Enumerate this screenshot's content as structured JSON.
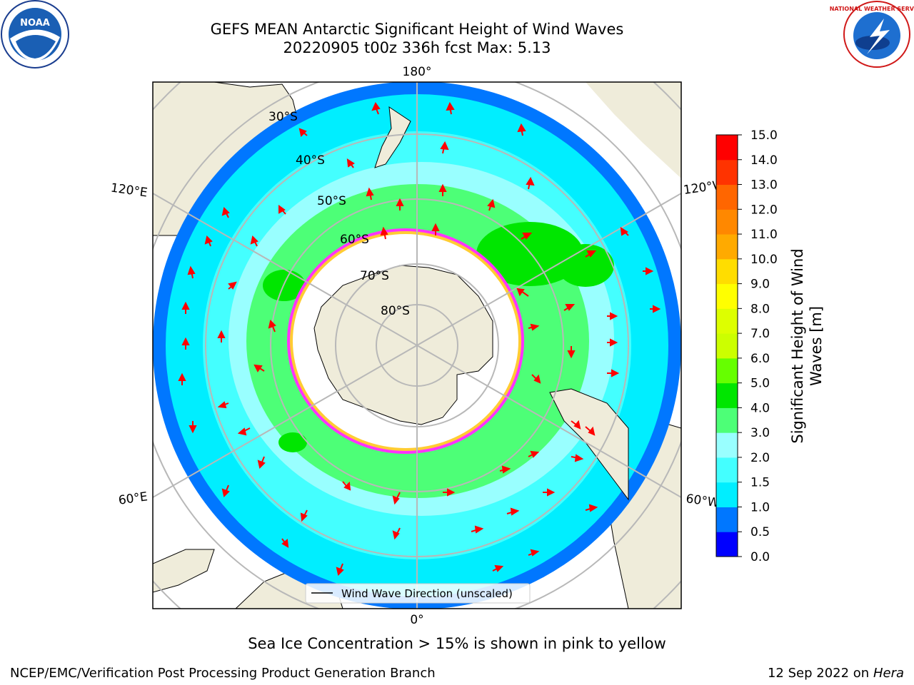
{
  "title_line1": "GEFS MEAN Antarctic Significant Height of Wind Waves",
  "title_line2": "20220905 t00z 336h fcst   Max: 5.13",
  "subtitle": "Sea Ice Concentration > 15% is shown in pink to yellow",
  "footer_left": "NCEP/EMC/Verification Post Processing Product Generation Branch",
  "footer_date": "12 Sep 2022 on",
  "footer_host": "Hera",
  "logos": {
    "left": "noaa-logo",
    "right": "national-weather-service-logo"
  },
  "noaa_logo_text": "NOAA",
  "nws_logo_text": "NATIONAL WEATHER SERVICE",
  "map": {
    "projection": "south-polar-stereographic",
    "longitude_labels": {
      "top": "180°",
      "bottom": "0°",
      "upper_left": "120°E",
      "lower_left": "60°E",
      "upper_right": "120°W",
      "lower_right": "60°W"
    },
    "latitude_labels": [
      "30°S",
      "40°S",
      "50°S",
      "60°S",
      "70°S",
      "80°S"
    ],
    "legend_label": "Wind Wave Direction (unscaled)",
    "arrow_color": "#ff0000",
    "land_color": "#efecda",
    "ice_edge_colors": [
      "#ff33ff",
      "#ff66cc",
      "#ffcc33"
    ]
  },
  "colorbar": {
    "title": "Significant Height of Wind Waves [m]",
    "title_line1": "Significant Height of Wind",
    "title_line2": "Waves [m]",
    "ticks": [
      "0.0",
      "0.5",
      "1.0",
      "1.5",
      "2.0",
      "3.0",
      "4.0",
      "5.0",
      "6.0",
      "7.0",
      "8.0",
      "9.0",
      "10.0",
      "11.0",
      "12.0",
      "13.0",
      "14.0",
      "15.0"
    ],
    "colors": [
      "#0000ff",
      "#0077ff",
      "#00eeff",
      "#44ffff",
      "#99ffff",
      "#4dff77",
      "#00e600",
      "#66ff00",
      "#ccff00",
      "#ddff00",
      "#ffff00",
      "#ffdd00",
      "#ffaa00",
      "#ff8800",
      "#ff6600",
      "#ff3300",
      "#ff0000"
    ]
  }
}
